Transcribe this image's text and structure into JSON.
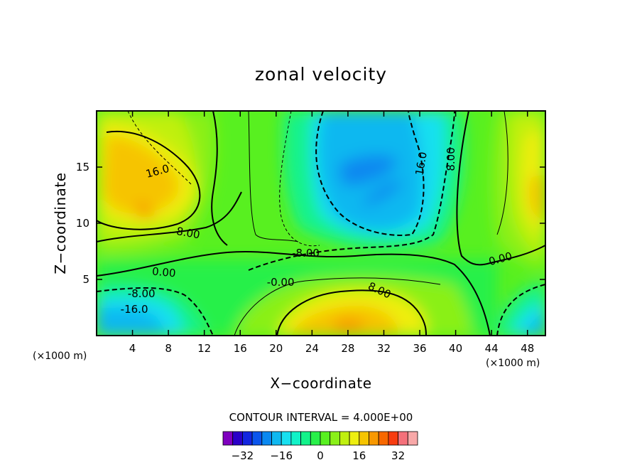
{
  "chart_data": {
    "type": "heatmap",
    "title": "zonal velocity",
    "xlabel": "X−coordinate",
    "ylabel": "Z−coordinate",
    "x_unit": "(×1000 m)",
    "y_unit": "(×1000 m)",
    "xlim": [
      0,
      50
    ],
    "ylim": [
      0,
      20
    ],
    "x_ticks": [
      4,
      8,
      12,
      16,
      20,
      24,
      28,
      32,
      36,
      40,
      44,
      48
    ],
    "y_ticks": [
      5,
      10,
      15
    ],
    "x_tick_labels": [
      "4",
      "8",
      "12",
      "16",
      "20",
      "24",
      "28",
      "32",
      "36",
      "40",
      "44",
      "48"
    ],
    "y_tick_labels": [
      "5",
      "10",
      "15"
    ],
    "contour_interval": 4.0,
    "contour_interval_text": "CONTOUR INTERVAL = 4.000E+00",
    "contour_labels": [
      {
        "text": "16.0",
        "x": 6.8,
        "z": 14.6,
        "rotate": 15
      },
      {
        "text": "8.00",
        "x": 10.2,
        "z": 9.1,
        "rotate": -10
      },
      {
        "text": "0.00",
        "x": 7.5,
        "z": 5.6,
        "rotate": -5
      },
      {
        "text": "-8.00",
        "x": 5.0,
        "z": 3.7,
        "rotate": 0
      },
      {
        "text": "-16.0",
        "x": 4.2,
        "z": 2.3,
        "rotate": 0
      },
      {
        "text": "-8.00",
        "x": 23.3,
        "z": 7.3,
        "rotate": 0
      },
      {
        "text": "-0.00",
        "x": 20.5,
        "z": 4.7,
        "rotate": 0
      },
      {
        "text": "8.00",
        "x": 31.5,
        "z": 4.0,
        "rotate": -25
      },
      {
        "text": "16.0",
        "x": 36.2,
        "z": 15.3,
        "rotate": 80
      },
      {
        "text": "8.00",
        "x": 39.5,
        "z": 15.7,
        "rotate": 90
      },
      {
        "text": "0.00",
        "x": 45.0,
        "z": 6.8,
        "rotate": 15
      }
    ],
    "colorbar": {
      "levels": [
        -36,
        -32,
        -28,
        -24,
        -20,
        -16,
        -12,
        -8,
        -4,
        0,
        4,
        8,
        12,
        16,
        20,
        24,
        28,
        32,
        36
      ],
      "tick_values": [
        -32,
        -16,
        0,
        16,
        32
      ],
      "tick_labels": [
        "−32",
        "−16",
        "0",
        "16",
        "32"
      ],
      "colors": [
        "#7f00bf",
        "#2b00c8",
        "#1326e0",
        "#0b55ec",
        "#0a88f0",
        "#10b8f0",
        "#18e0f0",
        "#12f2c8",
        "#12f28a",
        "#28f04a",
        "#58f020",
        "#8af018",
        "#c0f010",
        "#eeee10",
        "#f6c400",
        "#f89800",
        "#f86800",
        "#f83c10",
        "#f4707a",
        "#f8a8a8"
      ]
    }
  }
}
